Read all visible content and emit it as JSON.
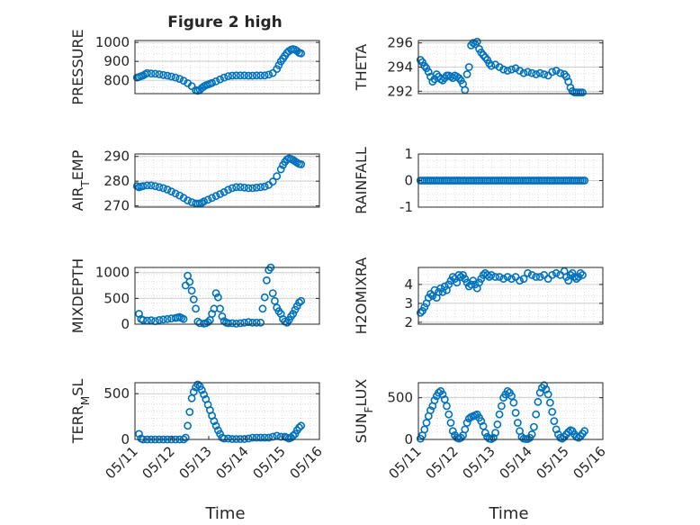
{
  "figure": {
    "title": "Figure 2 high"
  },
  "colors": {
    "marker": "#0072BD",
    "axis": "#262626",
    "grid": "#d9d9d9",
    "background": "#ffffff"
  },
  "chart_data": [
    {
      "type": "scatter",
      "id": "pressure",
      "ylabel": "PRESSURE",
      "ylabel_sub": "",
      "ylabel_after": "",
      "ylim": [
        730,
        1010
      ],
      "yticks": [
        800,
        900,
        1000
      ],
      "ytick_labels": [
        "800",
        "900",
        "1000"
      ],
      "xlim": [
        0,
        4.55
      ],
      "xticks": [],
      "grid": true,
      "x": [
        0.05,
        0.1,
        0.15,
        0.2,
        0.25,
        0.3,
        0.4,
        0.5,
        0.6,
        0.7,
        0.8,
        0.9,
        1.0,
        1.1,
        1.2,
        1.3,
        1.4,
        1.5,
        1.55,
        1.6,
        1.65,
        1.7,
        1.75,
        1.8,
        1.85,
        1.9,
        2.0,
        2.1,
        2.2,
        2.3,
        2.4,
        2.5,
        2.6,
        2.7,
        2.8,
        2.9,
        3.0,
        3.1,
        3.2,
        3.3,
        3.4,
        3.5,
        3.55,
        3.6,
        3.65,
        3.7,
        3.75,
        3.8,
        3.85,
        3.9,
        3.95,
        4.0,
        4.05,
        4.1
      ],
      "y": [
        815,
        818,
        822,
        826,
        832,
        838,
        836,
        835,
        832,
        828,
        825,
        820,
        815,
        808,
        798,
        785,
        770,
        748,
        745,
        750,
        760,
        768,
        774,
        778,
        782,
        786,
        795,
        805,
        815,
        822,
        825,
        826,
        826,
        826,
        825,
        825,
        826,
        826,
        826,
        830,
        838,
        860,
        880,
        900,
        915,
        930,
        945,
        955,
        962,
        965,
        962,
        955,
        945,
        942
      ]
    },
    {
      "type": "scatter",
      "id": "theta",
      "ylabel": "THETA",
      "ylabel_sub": "",
      "ylabel_after": "",
      "ylim": [
        291.8,
        296.2
      ],
      "yticks": [
        292,
        294,
        296
      ],
      "ytick_labels": [
        "292",
        "294",
        "296"
      ],
      "xlim": [
        0,
        4.55
      ],
      "xticks": [],
      "grid": true,
      "x": [
        0.05,
        0.1,
        0.15,
        0.2,
        0.25,
        0.3,
        0.35,
        0.4,
        0.45,
        0.5,
        0.55,
        0.6,
        0.65,
        0.7,
        0.75,
        0.8,
        0.85,
        0.9,
        0.95,
        1.0,
        1.05,
        1.1,
        1.15,
        1.2,
        1.25,
        1.3,
        1.35,
        1.4,
        1.45,
        1.5,
        1.55,
        1.6,
        1.65,
        1.7,
        1.75,
        1.8,
        1.9,
        2.0,
        2.1,
        2.2,
        2.3,
        2.4,
        2.5,
        2.6,
        2.7,
        2.8,
        2.9,
        3.0,
        3.1,
        3.2,
        3.3,
        3.4,
        3.5,
        3.6,
        3.65,
        3.7,
        3.75,
        3.8,
        3.85,
        3.9,
        3.95,
        4.0,
        4.05
      ],
      "y": [
        294.6,
        294.4,
        294.1,
        293.9,
        293.6,
        293.2,
        292.8,
        293.0,
        293.4,
        293.2,
        293.0,
        292.9,
        293.1,
        293.3,
        293.3,
        293.2,
        293.1,
        293.3,
        293.2,
        293.1,
        292.9,
        292.6,
        292.1,
        293.4,
        294.0,
        295.8,
        296.0,
        295.9,
        296.1,
        295.5,
        295.2,
        295.0,
        294.8,
        294.6,
        294.3,
        294.1,
        294.2,
        294.0,
        293.8,
        293.7,
        293.8,
        293.9,
        293.7,
        293.5,
        293.6,
        293.5,
        293.4,
        293.5,
        293.4,
        293.3,
        293.6,
        293.7,
        293.5,
        293.4,
        293.2,
        292.8,
        292.3,
        292.0,
        291.9,
        291.9,
        291.9,
        291.9,
        291.9
      ]
    },
    {
      "type": "scatter",
      "id": "air_temp",
      "ylabel": "AIR",
      "ylabel_sub": "T",
      "ylabel_after": "EMP",
      "ylim": [
        269.5,
        291
      ],
      "yticks": [
        270,
        280,
        290
      ],
      "ytick_labels": [
        "270",
        "280",
        "290"
      ],
      "xlim": [
        0,
        4.55
      ],
      "xticks": [],
      "grid": true,
      "x": [
        0.05,
        0.1,
        0.15,
        0.2,
        0.3,
        0.4,
        0.5,
        0.6,
        0.7,
        0.8,
        0.9,
        1.0,
        1.1,
        1.2,
        1.3,
        1.4,
        1.5,
        1.55,
        1.6,
        1.65,
        1.7,
        1.8,
        1.9,
        2.0,
        2.1,
        2.2,
        2.3,
        2.4,
        2.5,
        2.6,
        2.7,
        2.8,
        2.9,
        3.0,
        3.1,
        3.2,
        3.3,
        3.4,
        3.5,
        3.6,
        3.65,
        3.7,
        3.75,
        3.8,
        3.85,
        3.9,
        3.95,
        4.0,
        4.05,
        4.1
      ],
      "y": [
        278.0,
        277.5,
        277.8,
        278.0,
        278.3,
        278.3,
        278.0,
        277.6,
        277.2,
        276.6,
        275.8,
        275.0,
        274.2,
        273.2,
        272.2,
        271.5,
        271.0,
        270.9,
        271.0,
        271.2,
        271.8,
        272.5,
        273.2,
        274.0,
        274.8,
        275.6,
        276.5,
        277.2,
        277.6,
        277.6,
        277.4,
        277.2,
        277.2,
        277.4,
        277.6,
        277.8,
        278.5,
        279.8,
        282.0,
        284.8,
        286.5,
        287.8,
        288.8,
        289.2,
        289.0,
        288.6,
        288.0,
        287.5,
        287.0,
        286.8
      ]
    },
    {
      "type": "scatter",
      "id": "rainfall",
      "ylabel": "RAINFALL",
      "ylabel_sub": "",
      "ylabel_after": "",
      "ylim": [
        -1,
        1
      ],
      "yticks": [
        -1,
        0,
        1
      ],
      "ytick_labels": [
        "-1",
        "0",
        "1"
      ],
      "xlim": [
        0,
        4.55
      ],
      "xticks": [],
      "grid": true,
      "x": [
        0.05,
        0.1,
        0.15,
        0.2,
        0.25,
        0.3,
        0.35,
        0.4,
        0.45,
        0.5,
        0.55,
        0.6,
        0.65,
        0.7,
        0.75,
        0.8,
        0.85,
        0.9,
        0.95,
        1.0,
        1.05,
        1.1,
        1.15,
        1.2,
        1.25,
        1.3,
        1.35,
        1.4,
        1.45,
        1.5,
        1.55,
        1.6,
        1.65,
        1.7,
        1.75,
        1.8,
        1.85,
        1.9,
        1.95,
        2.0,
        2.05,
        2.1,
        2.15,
        2.2,
        2.25,
        2.3,
        2.35,
        2.4,
        2.45,
        2.5,
        2.55,
        2.6,
        2.65,
        2.7,
        2.75,
        2.8,
        2.85,
        2.9,
        2.95,
        3.0,
        3.05,
        3.1,
        3.15,
        3.2,
        3.25,
        3.3,
        3.35,
        3.4,
        3.45,
        3.5,
        3.55,
        3.6,
        3.65,
        3.7,
        3.75,
        3.8,
        3.85,
        3.9,
        3.95,
        4.0,
        4.05,
        4.1
      ],
      "y": [
        0,
        0,
        0,
        0,
        0,
        0,
        0,
        0,
        0,
        0,
        0,
        0,
        0,
        0,
        0,
        0,
        0,
        0,
        0,
        0,
        0,
        0,
        0,
        0,
        0,
        0,
        0,
        0,
        0,
        0,
        0,
        0,
        0,
        0,
        0,
        0,
        0,
        0,
        0,
        0,
        0,
        0,
        0,
        0,
        0,
        0,
        0,
        0,
        0,
        0,
        0,
        0,
        0,
        0,
        0,
        0,
        0,
        0,
        0,
        0,
        0,
        0,
        0,
        0,
        0,
        0,
        0,
        0,
        0,
        0,
        0,
        0,
        0,
        0,
        0,
        0,
        0,
        0,
        0,
        0,
        0,
        0
      ]
    },
    {
      "type": "scatter",
      "id": "mixdepth",
      "ylabel": "MIXDEPTH",
      "ylabel_sub": "",
      "ylabel_after": "",
      "ylim": [
        0,
        1100
      ],
      "yticks": [
        0,
        500,
        1000
      ],
      "ytick_labels": [
        "0",
        "500",
        "1000"
      ],
      "xlim": [
        0,
        4.55
      ],
      "xticks": [],
      "grid": true,
      "x": [
        0.1,
        0.15,
        0.2,
        0.3,
        0.4,
        0.5,
        0.6,
        0.7,
        0.8,
        0.9,
        1.0,
        1.05,
        1.1,
        1.15,
        1.2,
        1.25,
        1.3,
        1.35,
        1.4,
        1.45,
        1.5,
        1.55,
        1.6,
        1.7,
        1.75,
        1.8,
        1.85,
        1.9,
        1.95,
        2.0,
        2.05,
        2.1,
        2.15,
        2.2,
        2.25,
        2.3,
        2.4,
        2.5,
        2.6,
        2.7,
        2.8,
        2.9,
        3.0,
        3.1,
        3.15,
        3.2,
        3.25,
        3.3,
        3.35,
        3.4,
        3.45,
        3.5,
        3.55,
        3.6,
        3.65,
        3.7,
        3.75,
        3.8,
        3.85,
        3.9,
        3.95,
        4.0,
        4.05,
        4.1
      ],
      "y": [
        200,
        100,
        80,
        70,
        75,
        60,
        80,
        90,
        100,
        110,
        120,
        130,
        140,
        120,
        100,
        750,
        940,
        820,
        650,
        480,
        300,
        50,
        20,
        10,
        20,
        40,
        80,
        200,
        300,
        600,
        520,
        300,
        150,
        60,
        30,
        20,
        20,
        10,
        20,
        30,
        40,
        30,
        30,
        30,
        300,
        520,
        850,
        1050,
        1100,
        600,
        450,
        320,
        250,
        200,
        100,
        50,
        30,
        80,
        150,
        200,
        280,
        350,
        420,
        450
      ]
    },
    {
      "type": "scatter",
      "id": "h2omixra",
      "ylabel": "H2OMIXRA",
      "ylabel_sub": "",
      "ylabel_after": "",
      "ylim": [
        1.9,
        4.9
      ],
      "yticks": [
        2,
        3,
        4
      ],
      "ytick_labels": [
        "2",
        "3",
        "4"
      ],
      "xlim": [
        0,
        4.55
      ],
      "xticks": [],
      "grid": true,
      "x": [
        0.05,
        0.1,
        0.15,
        0.2,
        0.25,
        0.3,
        0.35,
        0.4,
        0.45,
        0.5,
        0.55,
        0.6,
        0.65,
        0.7,
        0.75,
        0.8,
        0.85,
        0.9,
        0.95,
        1.0,
        1.05,
        1.1,
        1.15,
        1.2,
        1.25,
        1.3,
        1.35,
        1.4,
        1.45,
        1.5,
        1.55,
        1.6,
        1.65,
        1.7,
        1.75,
        1.8,
        1.9,
        2.0,
        2.1,
        2.2,
        2.3,
        2.4,
        2.5,
        2.6,
        2.7,
        2.8,
        2.9,
        3.0,
        3.1,
        3.2,
        3.3,
        3.4,
        3.5,
        3.6,
        3.65,
        3.7,
        3.75,
        3.8,
        3.85,
        3.9,
        3.95,
        4.0,
        4.05
      ],
      "y": [
        2.5,
        2.6,
        2.8,
        3.0,
        3.3,
        3.5,
        3.4,
        3.7,
        3.3,
        3.6,
        3.8,
        3.6,
        3.9,
        3.7,
        4.0,
        4.2,
        4.4,
        4.3,
        4.1,
        4.5,
        4.4,
        4.5,
        4.3,
        4.1,
        3.9,
        4.0,
        4.2,
        4.0,
        3.8,
        4.1,
        4.3,
        4.5,
        4.6,
        4.5,
        4.4,
        4.5,
        4.4,
        4.4,
        4.3,
        4.4,
        4.3,
        4.4,
        4.2,
        4.3,
        4.6,
        4.5,
        4.4,
        4.4,
        4.5,
        4.3,
        4.5,
        4.6,
        4.5,
        4.7,
        4.4,
        4.2,
        4.5,
        4.6,
        4.4,
        4.3,
        4.4,
        4.6,
        4.5
      ]
    },
    {
      "type": "scatter",
      "id": "terr_msl",
      "ylabel": "TERR",
      "ylabel_sub": "M",
      "ylabel_after": "SL",
      "ylim": [
        0,
        620
      ],
      "yticks": [
        0,
        500
      ],
      "ytick_labels": [
        "0",
        "500"
      ],
      "xlim": [
        0,
        4.55
      ],
      "xticks": [
        0,
        1,
        2,
        3,
        4,
        5
      ],
      "xtick_labels": [
        "05/11",
        "05/12",
        "05/13",
        "05/14",
        "05/15",
        "05/16"
      ],
      "xlabel": "Time",
      "grid": true,
      "x": [
        0.1,
        0.15,
        0.2,
        0.3,
        0.4,
        0.5,
        0.6,
        0.7,
        0.8,
        0.9,
        1.0,
        1.1,
        1.2,
        1.25,
        1.3,
        1.35,
        1.4,
        1.45,
        1.5,
        1.55,
        1.6,
        1.65,
        1.7,
        1.75,
        1.8,
        1.85,
        1.9,
        1.95,
        2.0,
        2.05,
        2.1,
        2.15,
        2.2,
        2.3,
        2.4,
        2.5,
        2.6,
        2.7,
        2.8,
        2.9,
        3.0,
        3.1,
        3.2,
        3.3,
        3.4,
        3.5,
        3.6,
        3.7,
        3.75,
        3.8,
        3.85,
        3.9,
        3.95,
        4.0,
        4.05,
        4.1
      ],
      "y": [
        60,
        10,
        0,
        0,
        0,
        0,
        0,
        0,
        0,
        0,
        0,
        0,
        0,
        20,
        150,
        300,
        450,
        520,
        570,
        600,
        580,
        540,
        490,
        440,
        380,
        320,
        260,
        200,
        150,
        100,
        60,
        20,
        10,
        10,
        5,
        5,
        5,
        5,
        10,
        20,
        20,
        20,
        20,
        20,
        30,
        40,
        30,
        30,
        20,
        10,
        20,
        40,
        60,
        100,
        130,
        150
      ]
    },
    {
      "type": "scatter",
      "id": "sun_flux",
      "ylabel": "SUN",
      "ylabel_sub": "F",
      "ylabel_after": "LUX",
      "ylim": [
        0,
        680
      ],
      "yticks": [
        0,
        500
      ],
      "ytick_labels": [
        "0",
        "500"
      ],
      "xlim": [
        0,
        4.55
      ],
      "xticks": [
        0,
        1,
        2,
        3,
        4,
        5
      ],
      "xtick_labels": [
        "05/11",
        "05/12",
        "05/13",
        "05/14",
        "05/15",
        "05/16"
      ],
      "xlabel": "Time",
      "grid": true,
      "x": [
        0.05,
        0.1,
        0.15,
        0.2,
        0.25,
        0.3,
        0.35,
        0.4,
        0.45,
        0.5,
        0.55,
        0.6,
        0.65,
        0.7,
        0.75,
        0.8,
        0.85,
        0.9,
        0.95,
        1.0,
        1.05,
        1.1,
        1.15,
        1.2,
        1.25,
        1.3,
        1.35,
        1.4,
        1.45,
        1.5,
        1.55,
        1.6,
        1.65,
        1.7,
        1.75,
        1.8,
        1.85,
        1.9,
        1.95,
        2.0,
        2.05,
        2.1,
        2.15,
        2.2,
        2.25,
        2.3,
        2.35,
        2.4,
        2.45,
        2.5,
        2.55,
        2.6,
        2.65,
        2.7,
        2.75,
        2.8,
        2.85,
        2.9,
        2.95,
        3.0,
        3.05,
        3.1,
        3.15,
        3.2,
        3.25,
        3.3,
        3.35,
        3.4,
        3.45,
        3.5,
        3.55,
        3.6,
        3.65,
        3.7,
        3.75,
        3.8,
        3.85,
        3.9,
        3.95,
        4.0,
        4.05,
        4.1
      ],
      "y": [
        10,
        50,
        120,
        200,
        280,
        350,
        400,
        470,
        520,
        560,
        580,
        540,
        480,
        400,
        300,
        200,
        100,
        50,
        20,
        10,
        20,
        50,
        120,
        200,
        250,
        270,
        280,
        290,
        300,
        260,
        220,
        160,
        80,
        30,
        10,
        5,
        20,
        80,
        180,
        300,
        400,
        500,
        540,
        580,
        560,
        520,
        440,
        320,
        200,
        100,
        30,
        10,
        5,
        5,
        20,
        60,
        150,
        300,
        450,
        560,
        620,
        650,
        600,
        540,
        440,
        330,
        220,
        120,
        60,
        20,
        10,
        30,
        60,
        90,
        110,
        100,
        60,
        30,
        20,
        40,
        70,
        100
      ]
    }
  ]
}
